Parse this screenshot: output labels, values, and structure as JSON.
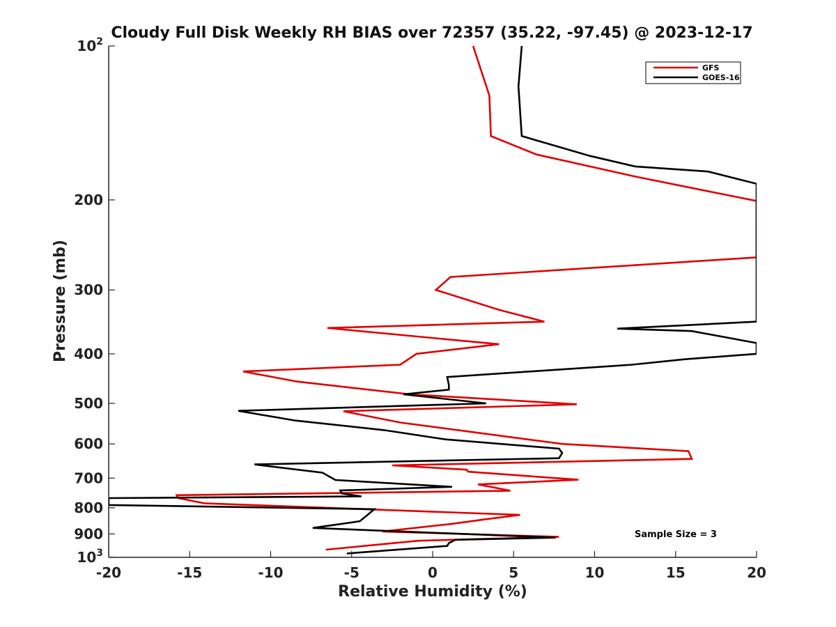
{
  "chart_data": {
    "type": "line",
    "title": "Cloudy Full Disk Weekly RH BIAS over 72357 (35.22, -97.45) @ 2023-12-17",
    "xlabel": "Relative Humidity (%)",
    "ylabel": "Pressure (mb)",
    "xlim": [
      -20,
      20
    ],
    "ylim": [
      100,
      1000
    ],
    "yscale": "log",
    "y_reversed": true,
    "x_ticks": [
      -20,
      -15,
      -10,
      -5,
      0,
      5,
      10,
      15,
      20
    ],
    "x_tick_labels": [
      "-20",
      "-15",
      "-10",
      "-5",
      "0",
      "5",
      "10",
      "15",
      "20"
    ],
    "y_ticks": [
      100,
      200,
      300,
      400,
      500,
      600,
      700,
      800,
      900,
      1000
    ],
    "y_tick_labels": [
      "10^2",
      "200",
      "300",
      "400",
      "500",
      "600",
      "700",
      "800",
      "900",
      "10^3"
    ],
    "grid": false,
    "legend_position": "top-right",
    "annotation": "Sample Size = 3",
    "series": [
      {
        "name": "GFS",
        "color": "#e00000",
        "x": [
          2.5,
          3.5,
          3.6,
          6.4,
          12.5,
          20,
          20,
          1.1,
          0.2,
          4.1,
          6.9,
          -6.5,
          4.1,
          -1.0,
          -2.0,
          -11.7,
          -8.4,
          -1.4,
          8.9,
          -5.5,
          -2.0,
          8.0,
          15.8,
          16.0,
          -2.5,
          2.1,
          2.2,
          9.0,
          2.8,
          4.8,
          -15.8,
          -15.7,
          -14.1,
          5.4,
          3.2,
          1.2,
          -3.1,
          7.8,
          -0.9,
          -6.6
        ],
        "y": [
          100,
          125,
          150,
          163,
          180,
          201,
          259,
          283,
          300,
          328,
          346,
          356,
          383,
          400,
          420,
          433,
          453,
          480,
          502,
          518,
          545,
          600,
          620,
          642,
          661,
          674,
          680,
          705,
          720,
          741,
          756,
          766,
          784,
          826,
          843,
          860,
          890,
          912,
          928,
          966
        ]
      },
      {
        "name": "GOES-16",
        "color": "#000000",
        "x": [
          5.5,
          5.3,
          5.5,
          9.7,
          12.5,
          17.0,
          20,
          20,
          11.4,
          16.0,
          20,
          20,
          15.5,
          12.3,
          0.9,
          1.0,
          1.0,
          -1.8,
          3.3,
          -12.0,
          -8.5,
          -3.0,
          0.8,
          7.8,
          8.0,
          7.8,
          -11.0,
          -6.8,
          -6.0,
          1.2,
          -5.7,
          -5.6,
          -4.4,
          -20,
          -20,
          -3.6,
          -4.0,
          -4.5,
          -7.4,
          7.6,
          1.4,
          1.0,
          0.9,
          -5.3
        ],
        "y": [
          100,
          120,
          150,
          164,
          172,
          176,
          186,
          346,
          357,
          361,
          381,
          400,
          410,
          420,
          444,
          460,
          470,
          480,
          500,
          517,
          540,
          564,
          588,
          613,
          625,
          640,
          658,
          683,
          706,
          728,
          740,
          750,
          760,
          766,
          790,
          805,
          825,
          850,
          876,
          915,
          924,
          938,
          950,
          983
        ]
      }
    ]
  }
}
